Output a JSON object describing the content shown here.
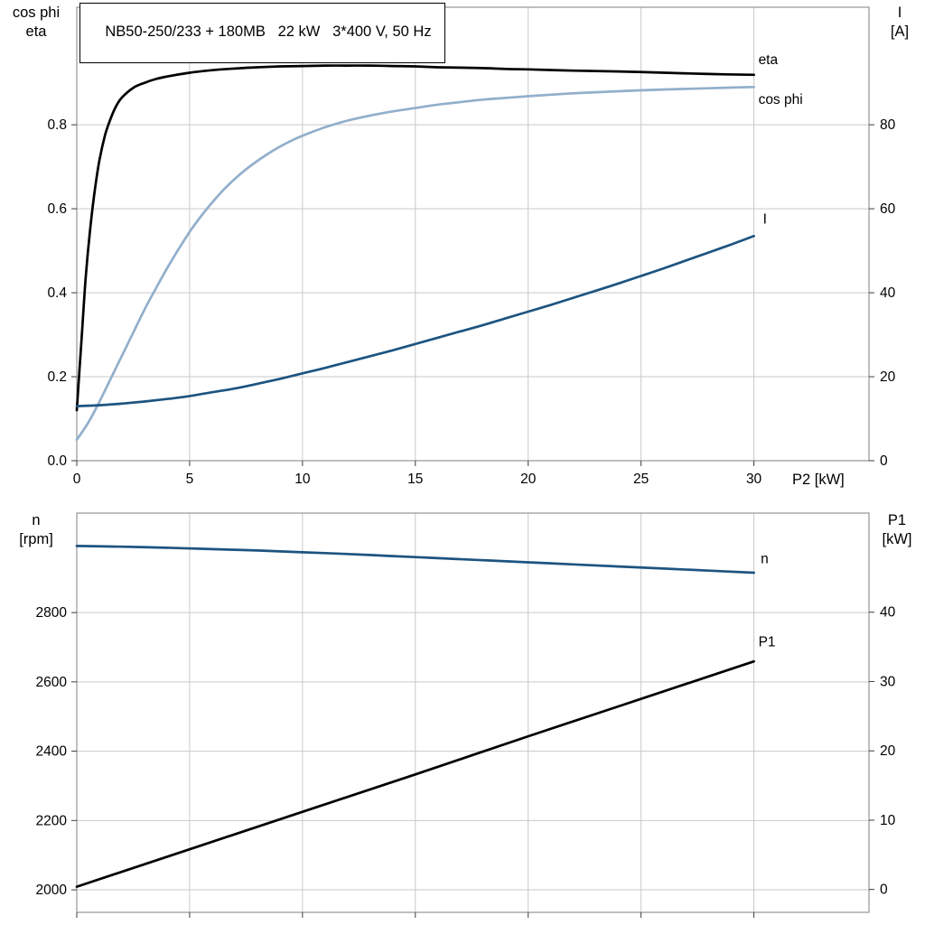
{
  "header": {
    "title": "NB50-250/233 + 180MB   22 kW   3*400 V, 50 Hz"
  },
  "colors": {
    "black": "#000000",
    "dark_blue": "#1d5480",
    "light_blue": "#92afcb",
    "grid": "#c9c9c9",
    "frame": "#7f7f7f",
    "tick": "#3c3c3c"
  },
  "axis_corner_labels": {
    "top_left": [
      "cos phi",
      "eta"
    ],
    "top_right": [
      "I",
      "[A]"
    ],
    "bottom_left": [
      "n",
      "[rpm]"
    ],
    "bottom_right": [
      "P1",
      "[kW]"
    ]
  },
  "chart_data": [
    {
      "id": "top",
      "type": "line",
      "title": "NB50-250/233 + 180MB   22 kW   3*400 V, 50 Hz",
      "grid": true,
      "legend_position": "right-inline",
      "x_axis": {
        "label": "P2 [kW]",
        "min": 0,
        "max": 35.1,
        "ticks": [
          0,
          5,
          10,
          15,
          20,
          25,
          30
        ],
        "tick_labels": [
          "0",
          "5",
          "10",
          "15",
          "20",
          "25",
          "30"
        ]
      },
      "y_left": {
        "name": "cos phi / eta",
        "min": 0,
        "max": 1.08,
        "ticks": [
          0,
          0.2,
          0.4,
          0.6,
          0.8
        ],
        "tick_labels": [
          "0.0",
          "0.2",
          "0.4",
          "0.6",
          "0.8"
        ]
      },
      "y_right": {
        "name": "I [A]",
        "min": 0,
        "max": 108,
        "ticks": [
          0,
          20,
          40,
          60,
          80
        ],
        "tick_labels": [
          "0",
          "20",
          "40",
          "60",
          "80"
        ]
      },
      "series": [
        {
          "name": "eta",
          "axis": "left",
          "color": "#000000",
          "label": {
            "text": "eta",
            "x": 30.2,
            "y": 0.953
          },
          "points": [
            [
              0,
              0.12
            ],
            [
              0.2,
              0.28
            ],
            [
              0.4,
              0.44
            ],
            [
              0.6,
              0.555
            ],
            [
              0.8,
              0.645
            ],
            [
              1,
              0.715
            ],
            [
              1.25,
              0.775
            ],
            [
              1.5,
              0.815
            ],
            [
              1.75,
              0.845
            ],
            [
              2,
              0.865
            ],
            [
              2.5,
              0.888
            ],
            [
              3,
              0.9
            ],
            [
              3.5,
              0.909
            ],
            [
              4,
              0.915
            ],
            [
              5,
              0.924
            ],
            [
              6,
              0.93
            ],
            [
              7,
              0.934
            ],
            [
              8,
              0.937
            ],
            [
              9,
              0.939
            ],
            [
              10,
              0.94
            ],
            [
              11,
              0.941
            ],
            [
              12,
              0.941
            ],
            [
              13,
              0.941
            ],
            [
              14,
              0.94
            ],
            [
              15,
              0.939
            ],
            [
              16,
              0.937
            ],
            [
              17,
              0.936
            ],
            [
              18,
              0.935
            ],
            [
              19,
              0.933
            ],
            [
              20,
              0.932
            ],
            [
              22,
              0.929
            ],
            [
              24,
              0.927
            ],
            [
              26,
              0.924
            ],
            [
              28,
              0.921
            ],
            [
              30,
              0.919
            ]
          ]
        },
        {
          "name": "cos phi",
          "axis": "left",
          "color": "#92afcb",
          "label": {
            "text": "cos phi",
            "x": 30.2,
            "y": 0.859
          },
          "points": [
            [
              0,
              0.05
            ],
            [
              0.5,
              0.09
            ],
            [
              1,
              0.14
            ],
            [
              1.5,
              0.195
            ],
            [
              2,
              0.25
            ],
            [
              2.5,
              0.305
            ],
            [
              3,
              0.36
            ],
            [
              3.5,
              0.41
            ],
            [
              4,
              0.458
            ],
            [
              4.5,
              0.503
            ],
            [
              5,
              0.545
            ],
            [
              5.5,
              0.582
            ],
            [
              6,
              0.615
            ],
            [
              6.5,
              0.645
            ],
            [
              7,
              0.671
            ],
            [
              7.5,
              0.694
            ],
            [
              8,
              0.714
            ],
            [
              8.5,
              0.732
            ],
            [
              9,
              0.748
            ],
            [
              9.5,
              0.762
            ],
            [
              10,
              0.774
            ],
            [
              11,
              0.794
            ],
            [
              12,
              0.81
            ],
            [
              13,
              0.822
            ],
            [
              14,
              0.832
            ],
            [
              15,
              0.84
            ],
            [
              16,
              0.848
            ],
            [
              17,
              0.854
            ],
            [
              18,
              0.86
            ],
            [
              19,
              0.864
            ],
            [
              20,
              0.868
            ],
            [
              22,
              0.875
            ],
            [
              24,
              0.88
            ],
            [
              26,
              0.884
            ],
            [
              28,
              0.887
            ],
            [
              30,
              0.89
            ]
          ]
        },
        {
          "name": "I",
          "axis": "right",
          "color": "#1d5480",
          "label": {
            "text": "I",
            "x": 30.4,
            "y": 57.4
          },
          "points": [
            [
              0,
              13
            ],
            [
              1,
              13.2
            ],
            [
              2,
              13.6
            ],
            [
              3,
              14.1
            ],
            [
              4,
              14.7
            ],
            [
              5,
              15.4
            ],
            [
              6,
              16.3
            ],
            [
              7,
              17.2
            ],
            [
              8,
              18.3
            ],
            [
              9,
              19.5
            ],
            [
              10,
              20.8
            ],
            [
              11,
              22.1
            ],
            [
              12,
              23.5
            ],
            [
              13,
              24.9
            ],
            [
              14,
              26.3
            ],
            [
              15,
              27.8
            ],
            [
              16,
              29.3
            ],
            [
              17,
              30.8
            ],
            [
              18,
              32.3
            ],
            [
              19,
              33.9
            ],
            [
              20,
              35.5
            ],
            [
              21,
              37.1
            ],
            [
              22,
              38.8
            ],
            [
              23,
              40.5
            ],
            [
              24,
              42.2
            ],
            [
              25,
              44
            ],
            [
              26,
              45.8
            ],
            [
              27,
              47.7
            ],
            [
              28,
              49.6
            ],
            [
              29,
              51.5
            ],
            [
              30,
              53.5
            ]
          ]
        }
      ]
    },
    {
      "id": "bottom",
      "type": "line",
      "title": "",
      "grid": true,
      "legend_position": "right-inline",
      "x_axis": {
        "label": "",
        "min": 0,
        "max": 35.1,
        "ticks": [
          0,
          5,
          10,
          15,
          20,
          25,
          30
        ],
        "tick_labels": []
      },
      "y_left": {
        "name": "n [rpm]",
        "min": 1935,
        "max": 3087,
        "ticks": [
          2000,
          2200,
          2400,
          2600,
          2800
        ],
        "tick_labels": [
          "2000",
          "2200",
          "2400",
          "2600",
          "2800"
        ]
      },
      "y_right": {
        "name": "P1 [kW]",
        "min": -3.3,
        "max": 54.3,
        "ticks": [
          0,
          10,
          20,
          30,
          40
        ],
        "tick_labels": [
          "0",
          "10",
          "20",
          "30",
          "40"
        ]
      },
      "series": [
        {
          "name": "n",
          "axis": "left",
          "color": "#1d5480",
          "label": {
            "text": "n",
            "x": 30.3,
            "y": 2953
          },
          "points": [
            [
              0,
              2992
            ],
            [
              2,
              2990
            ],
            [
              4,
              2987
            ],
            [
              6,
              2983
            ],
            [
              8,
              2979
            ],
            [
              10,
              2974
            ],
            [
              12,
              2969
            ],
            [
              14,
              2963
            ],
            [
              16,
              2957
            ],
            [
              18,
              2951
            ],
            [
              20,
              2945
            ],
            [
              22,
              2939
            ],
            [
              24,
              2933
            ],
            [
              26,
              2927
            ],
            [
              28,
              2921
            ],
            [
              30,
              2915
            ]
          ]
        },
        {
          "name": "P1",
          "axis": "right",
          "color": "#000000",
          "label": {
            "text": "P1",
            "x": 30.2,
            "y": 35.6
          },
          "points": [
            [
              0,
              0.4
            ],
            [
              5,
              5.8
            ],
            [
              10,
              11.2
            ],
            [
              15,
              16.6
            ],
            [
              20,
              22.1
            ],
            [
              25,
              27.5
            ],
            [
              30,
              32.9
            ]
          ]
        }
      ]
    }
  ]
}
